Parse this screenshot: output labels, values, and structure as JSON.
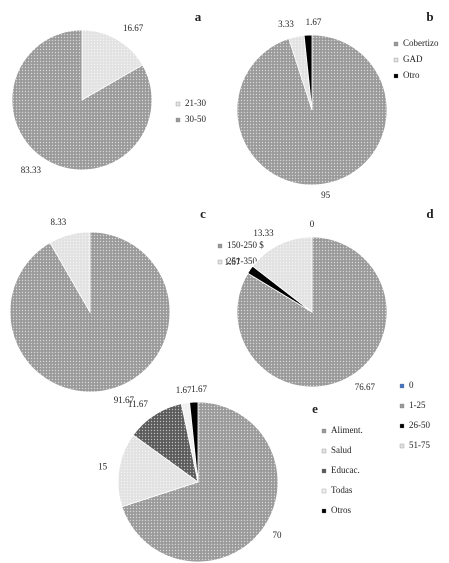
{
  "chart_data": [
    {
      "type": "pie",
      "title": "a",
      "categories": [
        "21-30",
        "30-50"
      ],
      "values": [
        16.67,
        83.33
      ],
      "colors": [
        "#e2e2e2",
        "#9a9a9a"
      ]
    },
    {
      "type": "pie",
      "title": "b",
      "categories": [
        "Cobertizo",
        "GAD",
        "Otro"
      ],
      "values": [
        95,
        3.33,
        1.67
      ],
      "colors": [
        "#9a9a9a",
        "#e2e2e2",
        "#000000"
      ]
    },
    {
      "type": "pie",
      "title": "c",
      "categories": [
        "150-250 $",
        "251-350"
      ],
      "values": [
        91.67,
        8.33
      ],
      "colors": [
        "#9a9a9a",
        "#e2e2e2"
      ]
    },
    {
      "type": "pie",
      "title": "d",
      "categories": [
        "0",
        "1-25",
        "26-50",
        "51-75"
      ],
      "values": [
        0,
        76.67,
        1.67,
        13.33
      ],
      "colors": [
        "#4472c4",
        "#9a9a9a",
        "#000000",
        "#e2e2e2"
      ]
    },
    {
      "type": "pie",
      "title": "e",
      "categories": [
        "Aliment.",
        "Salud",
        "Educac.",
        "Todas",
        "Otros"
      ],
      "values": [
        70,
        15,
        11.67,
        1.67,
        1.67
      ],
      "colors": [
        "#9a9a9a",
        "#e2e2e2",
        "#5a5a5a",
        "#f0f0f0",
        "#000000"
      ]
    }
  ]
}
